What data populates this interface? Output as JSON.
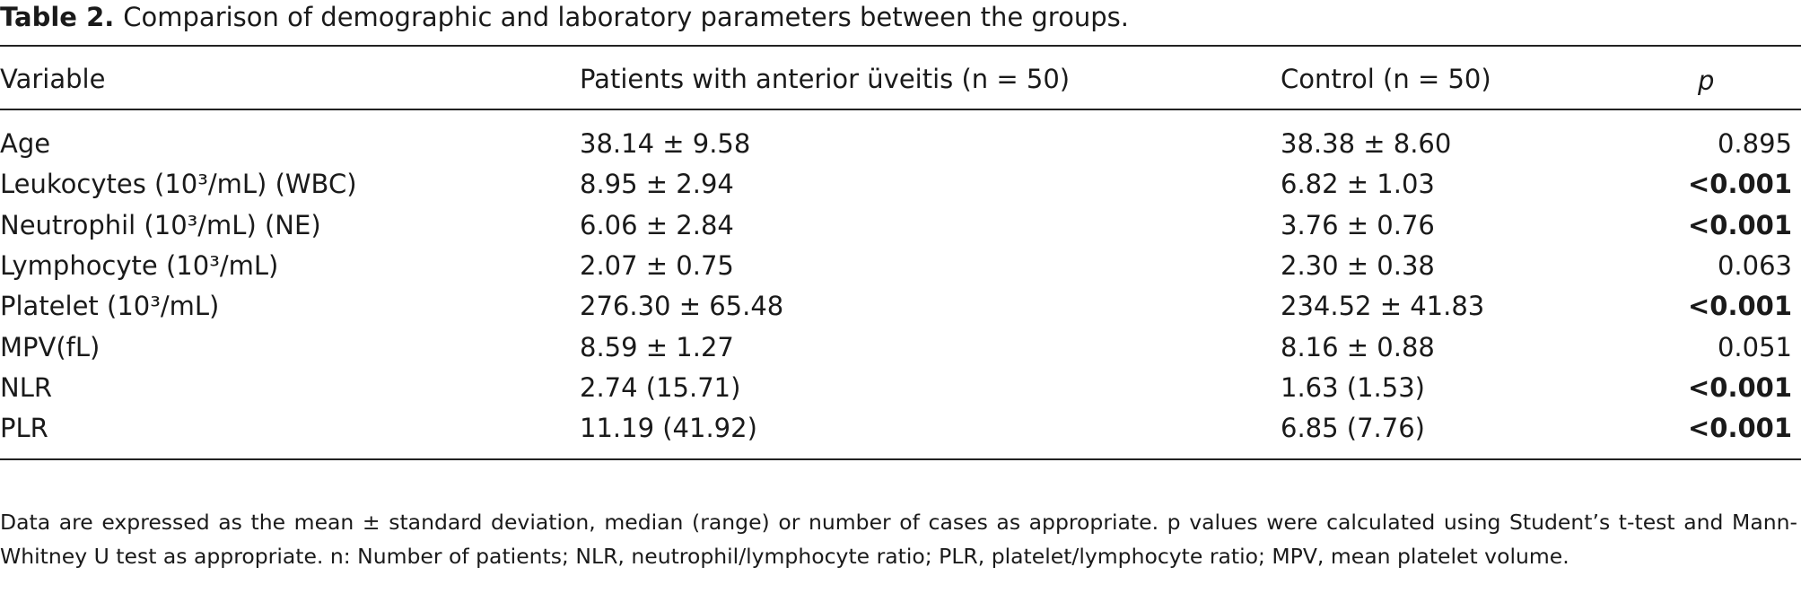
{
  "caption": {
    "label": "Table 2.",
    "text": "Comparison of demographic and laboratory parameters between the groups."
  },
  "table": {
    "header": [
      "Variable",
      "Patients with anterior üveitis (n = 50)",
      "Control (n = 50)",
      "p"
    ],
    "rows": [
      [
        "Age",
        "38.14 ± 9.58",
        "38.38 ± 8.60",
        "0.895"
      ],
      [
        "Leukocytes (10³/mL) (WBC)",
        "8.95 ± 2.94",
        "6.82 ± 1.03",
        "<0.001"
      ],
      [
        "Neutrophil (10³/mL) (NE)",
        "6.06 ± 2.84",
        "3.76 ± 0.76",
        "<0.001"
      ],
      [
        "Lymphocyte (10³/mL)",
        "2.07 ± 0.75",
        "2.30 ± 0.38",
        "0.063"
      ],
      [
        "Platelet (10³/mL)",
        "276.30 ± 65.48",
        "234.52 ± 41.83",
        "<0.001"
      ],
      [
        "MPV(fL)",
        "8.59 ± 1.27",
        "8.16 ± 0.88",
        "0.051"
      ],
      [
        "NLR",
        "2.74 (15.71)",
        "1.63 (1.53)",
        "<0.001"
      ],
      [
        "PLR",
        "11.19 (41.92)",
        "6.85 (7.76)",
        "<0.001"
      ]
    ]
  },
  "footnote": "Data are expressed as the mean ± standard deviation, median (range) or number of cases as appropriate. p values were calculated using Student’s t-test and Mann-Whitney U test as appropriate. n: Number of patients; NLR, neutrophil/lymphocyte ratio; PLR, platelet/lymphocyte ratio; MPV, mean platelet volume."
}
